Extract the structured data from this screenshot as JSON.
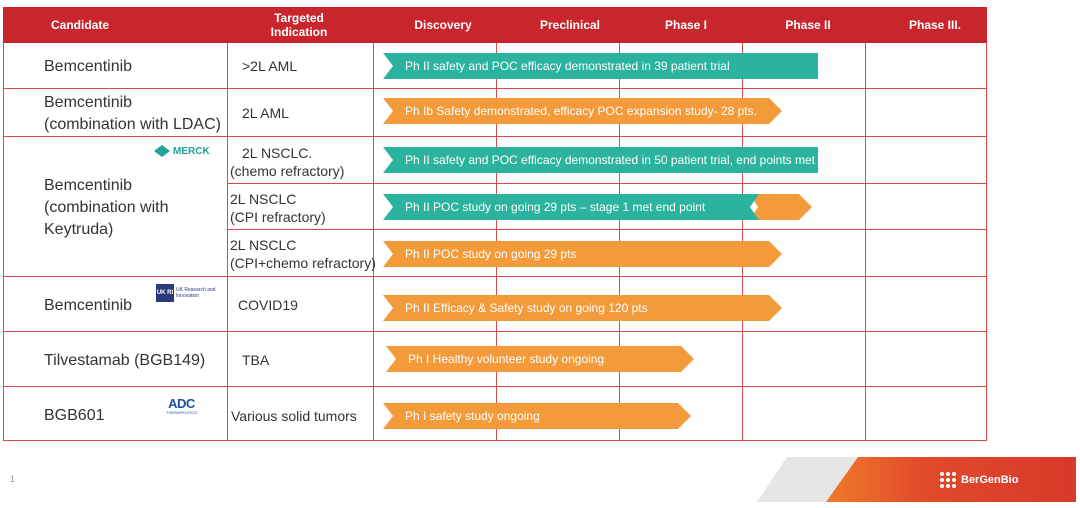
{
  "header": {
    "candidate": "Candidate",
    "indication": "Targeted\nIndication",
    "discovery": "Discovery",
    "preclinical": "Preclinical",
    "phase1": "Phase I",
    "phase2": "Phase II",
    "phase3": "Phase III."
  },
  "rows": [
    {
      "candidate": "Bemcentinib",
      "indication": ">2L AML",
      "bar": "Ph II safety and POC efficacy demonstrated in 39 patient trial"
    },
    {
      "candidate": "Bemcentinib\n(combination with LDAC)",
      "indication": "2L AML",
      "bar": "Ph Ib Safety demonstrated, efficacy POC expansion study- 28 pts."
    },
    {
      "candidate": "Bemcentinib\n(combination with\nKeytruda)",
      "indications": [
        "2L NSCLC.\n(chemo refractory)",
        "2L NSCLC\n(CPI refractory)",
        "2L NSCLC\n(CPI+chemo refractory)"
      ],
      "bars": [
        "Ph II safety and POC efficacy demonstrated in 50 patient trial, end points met",
        "Ph II POC study on going 29 pts – stage 1 met end point",
        "Ph II POC study on going 29 pts"
      ]
    },
    {
      "candidate": "Bemcentinib",
      "indication": "COVID19",
      "bar": "Ph II Efficacy & Safety  study on going 120 pts"
    },
    {
      "candidate": "Tilvestamab (BGB149)",
      "indication": "TBA",
      "bar": "Ph I Healthy volunteer study ongoing"
    },
    {
      "candidate": "BGB601",
      "indication": "Various solid tumors",
      "bar": "Ph I safety study ongoing"
    }
  ],
  "logos": {
    "merck": "MERCK",
    "ukri_box": "UK RI",
    "ukri_text": "UK Research and Innovation",
    "adc": "ADC",
    "adc_sub": "THERAPEUTICS"
  },
  "progress": {
    "row1": 0.72,
    "row2": 0.66,
    "row3a": 0.72,
    "row3b": 0.72,
    "row3c": 0.66,
    "row4": 0.66,
    "row5": 0.51,
    "row6": 0.51
  },
  "footer": {
    "page_number": "1",
    "brand": "BerGenBio"
  },
  "colors": {
    "header_red": "#c8262c",
    "teal": "#2bb39f",
    "orange": "#f39a3b",
    "brand_red": "#e04a2a"
  }
}
